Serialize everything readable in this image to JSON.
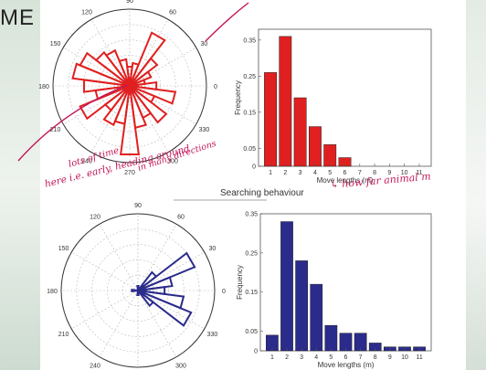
{
  "corner_text": "ME",
  "section_title": "Searching behaviour",
  "colors": {
    "red": "#e02020",
    "blue": "#2b2b8c",
    "ink": "#c2185b"
  },
  "annotations": {
    "line1": "lots of time",
    "line2": "here i.e. early, heading around",
    "line3": "in many directions",
    "arrow_note": "↳ how far animal m"
  },
  "chart_data": [
    {
      "type": "polar-bar",
      "color": "#e02020",
      "angle_labels": [
        "90",
        "60",
        "30",
        "0",
        "330",
        "300",
        "270",
        "240",
        "210",
        "180",
        "150",
        "120"
      ],
      "sectors": [
        {
          "angle": 0,
          "r": 0.35
        },
        {
          "angle": 15,
          "r": 0.2
        },
        {
          "angle": 30,
          "r": 0.3
        },
        {
          "angle": 45,
          "r": 0.45
        },
        {
          "angle": 60,
          "r": 0.75
        },
        {
          "angle": 75,
          "r": 0.3
        },
        {
          "angle": 90,
          "r": 0.25
        },
        {
          "angle": 105,
          "r": 0.35
        },
        {
          "angle": 120,
          "r": 0.5
        },
        {
          "angle": 135,
          "r": 0.55
        },
        {
          "angle": 150,
          "r": 0.7
        },
        {
          "angle": 165,
          "r": 0.75
        },
        {
          "angle": 180,
          "r": 0.6
        },
        {
          "angle": 195,
          "r": 0.45
        },
        {
          "angle": 210,
          "r": 0.7
        },
        {
          "angle": 225,
          "r": 0.4
        },
        {
          "angle": 240,
          "r": 0.55
        },
        {
          "angle": 255,
          "r": 0.5
        },
        {
          "angle": 270,
          "r": 0.9
        },
        {
          "angle": 285,
          "r": 0.55
        },
        {
          "angle": 300,
          "r": 0.45
        },
        {
          "angle": 315,
          "r": 0.6
        },
        {
          "angle": 330,
          "r": 0.35
        },
        {
          "angle": 345,
          "r": 0.6
        }
      ]
    },
    {
      "type": "bar",
      "color": "#e02020",
      "categories": [
        "1",
        "2",
        "3",
        "4",
        "5",
        "6",
        "7",
        "8",
        "9",
        "10",
        "11"
      ],
      "values": [
        0.26,
        0.36,
        0.19,
        0.11,
        0.06,
        0.024,
        0,
        0,
        0,
        0,
        0
      ],
      "xlabel": "Move lengths (m)",
      "ylabel": "Frequency",
      "ylim": [
        0,
        0.38
      ],
      "yticks": [
        "0",
        "0.05",
        "0.15",
        "0.25",
        "0.35"
      ]
    },
    {
      "type": "polar-bar",
      "color": "#2b2b8c",
      "angle_labels": [
        "90",
        "60",
        "30",
        "0",
        "330",
        "300",
        "270",
        "240",
        "210",
        "180",
        "150",
        "120"
      ],
      "sectors": [
        {
          "angle": 0,
          "r": 0.35
        },
        {
          "angle": 15,
          "r": 0.45
        },
        {
          "angle": 30,
          "r": 0.8
        },
        {
          "angle": 45,
          "r": 0.3
        },
        {
          "angle": 330,
          "r": 0.75
        },
        {
          "angle": 345,
          "r": 0.6
        },
        {
          "angle": 315,
          "r": 0.25
        },
        {
          "angle": 180,
          "r": 0.08
        },
        {
          "angle": 90,
          "r": 0.06
        },
        {
          "angle": 270,
          "r": 0.06
        }
      ]
    },
    {
      "type": "bar",
      "color": "#2b2b8c",
      "categories": [
        "1",
        "2",
        "3",
        "4",
        "5",
        "6",
        "7",
        "8",
        "9",
        "10",
        "11"
      ],
      "values": [
        0.04,
        0.33,
        0.23,
        0.17,
        0.065,
        0.045,
        0.045,
        0.02,
        0.01,
        0.01,
        0.01
      ],
      "xlabel": "Move lengths (m)",
      "ylabel": "Frequency",
      "ylim": [
        0,
        0.35
      ],
      "yticks": [
        "0",
        "0.05",
        "0.15",
        "0.25",
        "0.35"
      ]
    }
  ]
}
